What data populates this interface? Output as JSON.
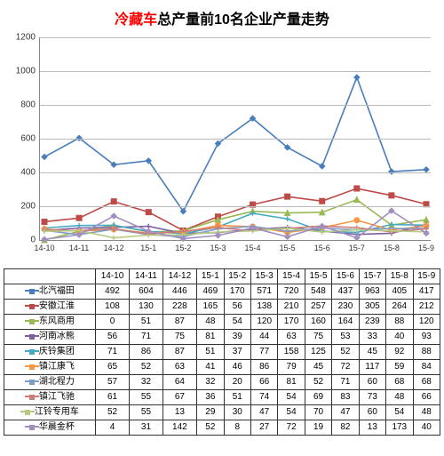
{
  "title_red": "冷藏车",
  "title_black": "总产量前10名企业产量走势",
  "chart": {
    "type": "line",
    "ylim": [
      0,
      1200
    ],
    "ytick_step": 200,
    "categories": [
      "14-10",
      "14-11",
      "14-12",
      "15-1",
      "15-2",
      "15-3",
      "15-4",
      "15-5",
      "15-6",
      "15-7",
      "15-8",
      "15-9"
    ],
    "grid_color": "#bbbbbb",
    "background_color": "#ffffff",
    "series": [
      {
        "name": "北汽福田",
        "color": "#4a7ebb",
        "marker": "diamond",
        "values": [
          492,
          604,
          446,
          469,
          170,
          571,
          720,
          548,
          437,
          963,
          405,
          417
        ]
      },
      {
        "name": "安徽江淮",
        "color": "#be4b48",
        "marker": "square",
        "values": [
          108,
          130,
          228,
          165,
          56,
          138,
          210,
          257,
          230,
          305,
          264,
          212
        ]
      },
      {
        "name": "东风商用",
        "color": "#98b954",
        "marker": "triangle",
        "values": [
          0,
          51,
          87,
          48,
          54,
          120,
          170,
          160,
          164,
          239,
          88,
          120
        ]
      },
      {
        "name": "河南冰熊",
        "color": "#7d60a0",
        "marker": "x",
        "values": [
          56,
          71,
          75,
          81,
          39,
          44,
          63,
          75,
          53,
          33,
          40,
          93
        ]
      },
      {
        "name": "庆铃集团",
        "color": "#46aac5",
        "marker": "star",
        "values": [
          71,
          86,
          87,
          51,
          37,
          77,
          158,
          125,
          52,
          45,
          92,
          88
        ]
      },
      {
        "name": "镇江康飞",
        "color": "#f79646",
        "marker": "circle",
        "values": [
          65,
          52,
          63,
          41,
          46,
          86,
          79,
          45,
          72,
          117,
          59,
          84
        ]
      },
      {
        "name": "湖北程力",
        "color": "#7f9ec8",
        "marker": "plus",
        "values": [
          57,
          32,
          64,
          32,
          20,
          66,
          81,
          52,
          71,
          60,
          68,
          68
        ]
      },
      {
        "name": "镇江飞驰",
        "color": "#cc7b79",
        "marker": "dash",
        "values": [
          61,
          55,
          67,
          36,
          51,
          74,
          54,
          69,
          83,
          73,
          48,
          66
        ]
      },
      {
        "name": "江铃专用车",
        "color": "#b7ca83",
        "marker": "none",
        "values": [
          52,
          55,
          13,
          29,
          30,
          47,
          54,
          70,
          47,
          60,
          54,
          48
        ]
      },
      {
        "name": "华晨金杯",
        "color": "#a28ebf",
        "marker": "diamond",
        "values": [
          4,
          31,
          142,
          52,
          8,
          27,
          72,
          19,
          82,
          13,
          173,
          40
        ]
      }
    ]
  }
}
